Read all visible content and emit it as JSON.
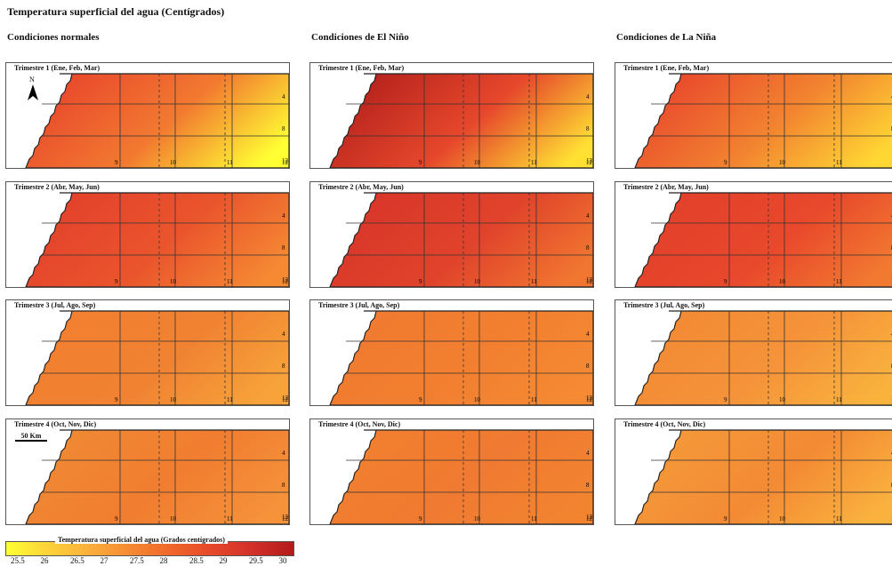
{
  "title": "Temperatura superficial del agua (Centígrados)",
  "columns": [
    {
      "id": "normal",
      "title": "Condiciones normales"
    },
    {
      "id": "nino",
      "title": "Condiciones de El Niño"
    },
    {
      "id": "nina",
      "title": "Condiciones de La Niña"
    }
  ],
  "quarters": [
    {
      "id": "q1",
      "label": "Trimestre 1 (Ene, Feb, Mar)"
    },
    {
      "id": "q2",
      "label": "Trimestre 2 (Abr, May, Jun)"
    },
    {
      "id": "q3",
      "label": "Trimestre 3 (Jul, Ago, Sep)"
    },
    {
      "id": "q4",
      "label": "Trimestre 4 (Oct, Nov, Dic)"
    }
  ],
  "north_arrow": {
    "label": "N",
    "icon": "north-arrow-icon"
  },
  "scale_bar": {
    "label": "50 Km"
  },
  "legend": {
    "title": "Temperatura superficial del agua (Grados centígrados)",
    "ticks": [
      "25.5",
      "26",
      "26.5",
      "27",
      "27.5",
      "28",
      "28.5",
      "29",
      "29.5",
      "30"
    ],
    "colors": [
      "#ffff33",
      "#fdd33a",
      "#fbb03b",
      "#f58a33",
      "#f0672a",
      "#e6482b",
      "#d23029",
      "#b31b1b"
    ]
  },
  "grid_labels": {
    "row_right": [
      "4",
      "8",
      "12"
    ],
    "bottom": [
      "9",
      "10",
      "11",
      "12"
    ]
  },
  "shading": {
    "normal": {
      "q1": {
        "near": "#e8452c",
        "mid": "#f27a30",
        "far": "#ffff33"
      },
      "q2": {
        "near": "#e2402b",
        "mid": "#ea552c",
        "far": "#f58a33"
      },
      "q3": {
        "near": "#f27f2f",
        "mid": "#f08232",
        "far": "#f7a33a"
      },
      "q4": {
        "near": "#f08a34",
        "mid": "#f17d30",
        "far": "#f5923a"
      }
    },
    "nino": {
      "q1": {
        "near": "#b3201c",
        "mid": "#e6482b",
        "far": "#ffe033"
      },
      "q2": {
        "near": "#d8352a",
        "mid": "#e0432b",
        "far": "#f17630"
      },
      "q3": {
        "near": "#f07a31",
        "mid": "#f27f2f",
        "far": "#f58a33"
      },
      "q4": {
        "near": "#f27f2f",
        "mid": "#f07a31",
        "far": "#f28430"
      }
    },
    "nina": {
      "q1": {
        "near": "#e8452c",
        "mid": "#f28430",
        "far": "#ffd733"
      },
      "q2": {
        "near": "#e2402b",
        "mid": "#e8482b",
        "far": "#f27a30"
      },
      "q3": {
        "near": "#f28a33",
        "mid": "#f5933a",
        "far": "#f9b33d"
      },
      "q4": {
        "near": "#f49a3a",
        "mid": "#f38a34",
        "far": "#fab23e"
      }
    }
  }
}
